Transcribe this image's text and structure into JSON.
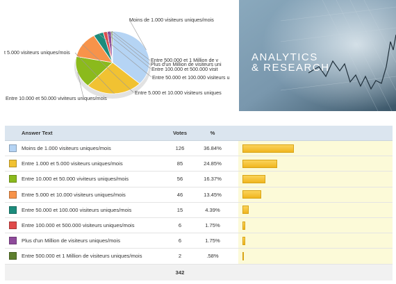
{
  "chart_data": [
    {
      "type": "pie",
      "title": "",
      "categories": [
        "Moins de 1.000 visiteurs uniques/mois",
        "Entre 1.000 et 5.000 visiteurs uniques/mois",
        "Entre 10.000 et 50.000 viviteurs uniques/mois",
        "Entre 5.000 et 10.000 visiteurs uniques/mois",
        "Entre 50.000 et 100.000 visiteurs uniques/mois",
        "Entre 100.000 et 500.000 visiteurs uniques/mois",
        "Plus d'un Million de visiteurs uniques/mois",
        "Entre 500.000 et 1 Million de visiteurs uniques/mois"
      ],
      "values": [
        126,
        85,
        56,
        46,
        15,
        6,
        6,
        2
      ],
      "colors": [
        "#b5d4f4",
        "#f1c232",
        "#8bba1c",
        "#f7934a",
        "#1c8c7c",
        "#e04a4a",
        "#8f4b9b",
        "#5e7f2e"
      ],
      "labels": {
        "moins": "Moins de 1.000 visiteurs uniques/mois",
        "e1000": "t 5.000 visiteurs uniques/mois",
        "e10000": "Entre 10.000 et 50.000 viviteurs uniques/mois",
        "e5000": "Entre 5.000 et 10.000 visiteurs uniques",
        "e50000": "Entre 50.000 et 100.000 visiteurs u",
        "e100000": "Entre 100.000 et 500.000 visit",
        "plus": "Plus d'un Million de visiteurs uni",
        "e500000": "Entre 500.000 et 1 Million de v"
      }
    },
    {
      "type": "table",
      "columns": [
        "Answer Text",
        "Votes",
        "%"
      ],
      "rows": [
        {
          "answer": "Moins de 1.000 visiteurs uniques/mois",
          "votes": "126",
          "pct": "36.84%",
          "pct_value": 36.84,
          "color": "#b5d4f4"
        },
        {
          "answer": "Entre 1.000 et 5.000 visiteurs uniques/mois",
          "votes": "85",
          "pct": "24.85%",
          "pct_value": 24.85,
          "color": "#f1c232"
        },
        {
          "answer": "Entre 10.000 et 50.000 viviteurs uniques/mois",
          "votes": "56",
          "pct": "16.37%",
          "pct_value": 16.37,
          "color": "#8bba1c"
        },
        {
          "answer": "Entre 5.000 et 10.000 visiteurs uniques/mois",
          "votes": "46",
          "pct": "13.45%",
          "pct_value": 13.45,
          "color": "#f7934a"
        },
        {
          "answer": "Entre 50.000 et 100.000 visiteurs uniques/mois",
          "votes": "15",
          "pct": "4.39%",
          "pct_value": 4.39,
          "color": "#1c8c7c"
        },
        {
          "answer": "Entre 100.000 et 500.000 visiteurs uniques/mois",
          "votes": "6",
          "pct": "1.75%",
          "pct_value": 1.75,
          "color": "#e04a4a"
        },
        {
          "answer": "Plus d'un Million de visiteurs uniques/mois",
          "votes": "6",
          "pct": "1.75%",
          "pct_value": 1.75,
          "color": "#8f4b9b"
        },
        {
          "answer": "Entre 500.000 et 1 Million de visiteurs uniques/mois",
          "votes": "2",
          "pct": ".58%",
          "pct_value": 0.58,
          "color": "#5e7f2e"
        }
      ],
      "total": "342"
    }
  ],
  "hero": {
    "line1": "ANALYTICS",
    "line2": "& RESEARCH"
  }
}
